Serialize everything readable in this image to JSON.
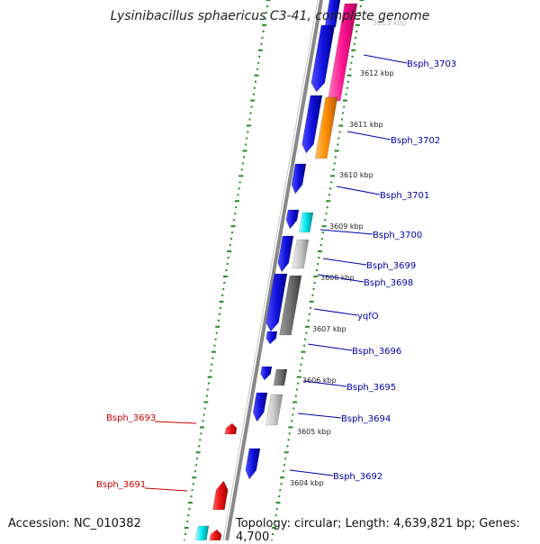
{
  "title": "Lysinibacillus sphaericus C3-41, complete genome",
  "footer": {
    "accession": "Accession: NC_010382",
    "topology": "Topology: circular; Length: 4,639,821 bp; Genes: 4,700"
  },
  "tick_labels": [
    {
      "label": "3613 kbp",
      "faded": true
    },
    {
      "label": "3612 kbp"
    },
    {
      "label": "3611 kbp"
    },
    {
      "label": "3610 kbp"
    },
    {
      "label": "3609 kbp"
    },
    {
      "label": "3608 kbp"
    },
    {
      "label": "3607 kbp"
    },
    {
      "label": "3606 kbp"
    },
    {
      "label": "3605 kbp"
    },
    {
      "label": "3604 kbp"
    }
  ],
  "gene_labels": [
    {
      "label": "Bsph_3703",
      "color": "#0000aa",
      "side": "right"
    },
    {
      "label": "Bsph_3702",
      "color": "#0000aa",
      "side": "right"
    },
    {
      "label": "Bsph_3701",
      "color": "#0000aa",
      "side": "right"
    },
    {
      "label": "Bsph_3700",
      "color": "#0000aa",
      "side": "right"
    },
    {
      "label": "Bsph_3699",
      "color": "#0000aa",
      "side": "right"
    },
    {
      "label": "Bsph_3698",
      "color": "#0000aa",
      "side": "right"
    },
    {
      "label": "yqfO",
      "color": "#0000aa",
      "side": "right"
    },
    {
      "label": "Bsph_3696",
      "color": "#0000aa",
      "side": "right"
    },
    {
      "label": "Bsph_3695",
      "color": "#0000aa",
      "side": "right"
    },
    {
      "label": "Bsph_3694",
      "color": "#0000aa",
      "side": "right"
    },
    {
      "label": "Bsph_3693",
      "color": "#cc0000",
      "side": "left"
    },
    {
      "label": "Bsph_3692",
      "color": "#0000aa",
      "side": "right"
    },
    {
      "label": "Bsph_3691",
      "color": "#cc0000",
      "side": "left"
    }
  ],
  "colors": {
    "forward": "#1111dd",
    "reverse": "#ee1111",
    "backbone": "#888888",
    "tick_dots": "#228b22",
    "magenta": "#ff1493",
    "orange": "#ff8c00",
    "cyan": "#00e5ee",
    "light_gray": "#c8c8c8",
    "dark_gray": "#707070"
  }
}
